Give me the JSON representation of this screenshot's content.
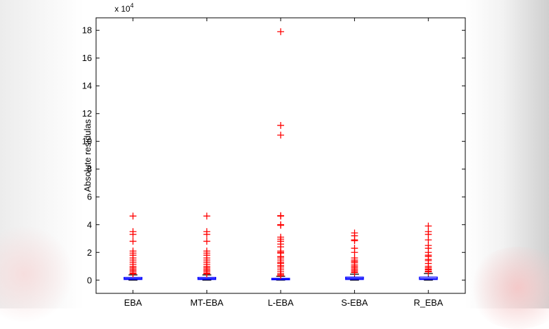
{
  "chart_data": {
    "type": "boxplot",
    "ylabel": "Absolute residulas",
    "y_multiplier": "x 10",
    "y_multiplier_exp": "4",
    "ylim": [
      -0.95,
      18.9
    ],
    "yticks": [
      0,
      2,
      4,
      6,
      8,
      10,
      12,
      14,
      16,
      18
    ],
    "categories": [
      "EBA",
      "MT-EBA",
      "L-EBA",
      "S-EBA",
      "R_EBA"
    ],
    "grid": false,
    "colors": {
      "box": "#0000ff",
      "median": "#0000ff",
      "whisker": "#000000",
      "outlier": "#ff0000"
    },
    "boxes": [
      {
        "q1": 0.05,
        "median": 0.1,
        "q3": 0.2,
        "whisker_low": 0,
        "whisker_high": 0.38,
        "outliers": [
          4.62,
          3.5,
          3.3,
          2.8,
          2.1,
          1.95,
          1.8,
          1.6,
          1.45,
          1.3,
          1.15,
          1.0,
          0.9,
          0.8,
          0.7,
          0.6,
          0.5,
          0.45
        ]
      },
      {
        "q1": 0.05,
        "median": 0.1,
        "q3": 0.2,
        "whisker_low": 0,
        "whisker_high": 0.38,
        "outliers": [
          4.62,
          3.5,
          3.3,
          2.8,
          2.1,
          1.95,
          1.8,
          1.6,
          1.45,
          1.3,
          1.15,
          1.0,
          0.9,
          0.8,
          0.7,
          0.6,
          0.5,
          0.45
        ]
      },
      {
        "q1": 0.03,
        "median": 0.07,
        "q3": 0.13,
        "whisker_low": 0,
        "whisker_high": 0.28,
        "outliers": [
          17.9,
          11.15,
          10.45,
          4.65,
          4.62,
          4.0,
          3.95,
          3.1,
          2.95,
          2.8,
          2.6,
          2.4,
          2.1,
          2.0,
          1.95,
          1.7,
          1.6,
          1.45,
          1.3,
          1.2,
          1.05,
          0.95,
          0.8,
          0.65,
          0.5,
          0.4,
          0.32
        ]
      },
      {
        "q1": 0.05,
        "median": 0.12,
        "q3": 0.22,
        "whisker_low": 0,
        "whisker_high": 0.43,
        "outliers": [
          3.4,
          3.2,
          2.9,
          2.85,
          2.3,
          2.0,
          1.6,
          1.45,
          1.35,
          1.25,
          1.1,
          1.0,
          0.9,
          0.8,
          0.7,
          0.6,
          0.55
        ]
      },
      {
        "q1": 0.05,
        "median": 0.1,
        "q3": 0.22,
        "whisker_low": 0,
        "whisker_high": 0.48,
        "outliers": [
          3.9,
          3.5,
          3.3,
          2.9,
          2.5,
          2.3,
          2.0,
          1.8,
          1.7,
          1.5,
          1.4,
          1.2,
          1.0,
          0.9,
          0.8,
          0.75,
          0.65,
          0.6
        ]
      }
    ]
  }
}
